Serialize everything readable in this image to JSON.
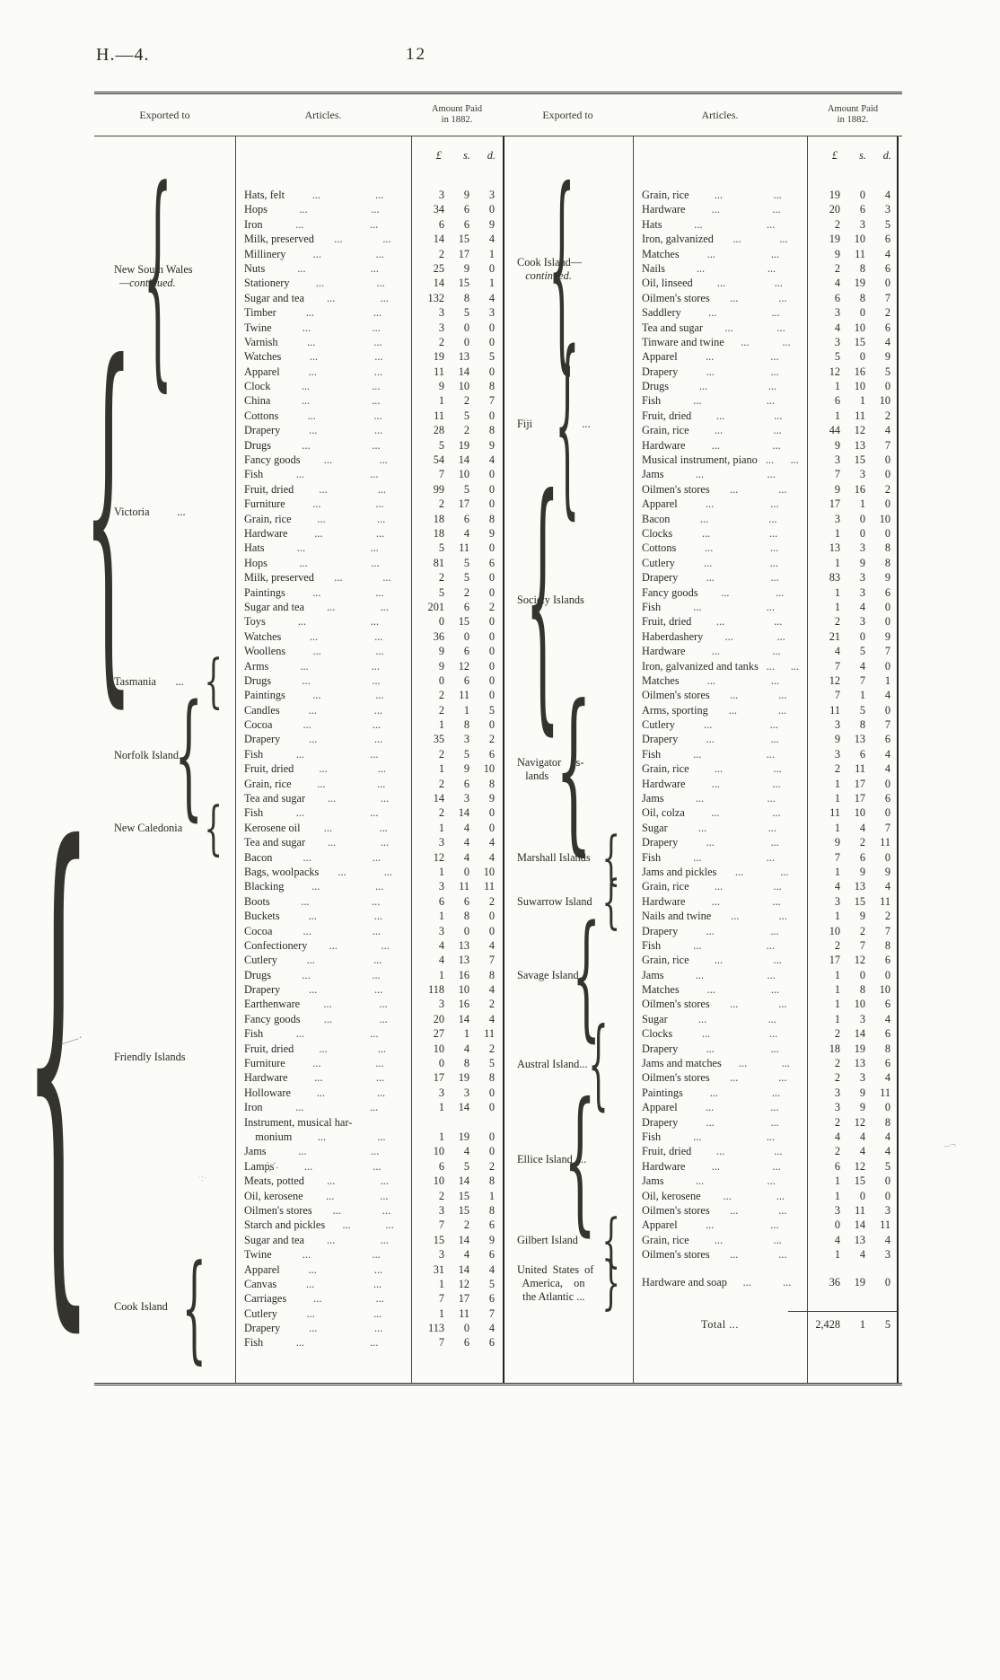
{
  "header": {
    "doc_ref": "H.—4.",
    "page_number": "12"
  },
  "table": {
    "headers": {
      "exported_to": "Exported to",
      "articles": "Articles.",
      "amount_line1": "Amount Paid",
      "amount_line2": "in 1882."
    },
    "currency": {
      "pound": "£",
      "shillings": "s.",
      "pence": "d."
    },
    "leader": "...",
    "total": {
      "label": "Total ...",
      "pounds": "2,428",
      "shillings": "1",
      "pence": "5"
    },
    "left_groups": [
      {
        "label": [
          "New South Wales",
          "  —continued."
        ],
        "italic": [
          1
        ],
        "brace": "{",
        "rows": [
          [
            "Hats, felt",
            "3",
            "9",
            "3"
          ],
          [
            "Hops",
            "34",
            "6",
            "0"
          ],
          [
            "Iron",
            "6",
            "6",
            "9"
          ],
          [
            "Milk, preserved",
            "14",
            "15",
            "4"
          ],
          [
            "Millinery",
            "2",
            "17",
            "1"
          ],
          [
            "Nuts",
            "25",
            "9",
            "0"
          ],
          [
            "Stationery",
            "14",
            "15",
            "1"
          ],
          [
            "Sugar and tea",
            "132",
            "8",
            "4"
          ],
          [
            "Timber",
            "3",
            "5",
            "3"
          ],
          [
            "Twine",
            "3",
            "0",
            "0"
          ],
          [
            "Varnish",
            "2",
            "0",
            "0"
          ],
          [
            "Watches",
            "19",
            "13",
            "5"
          ]
        ]
      },
      {
        "label": [
          "Victoria          ..."
        ],
        "brace": "{",
        "rows": [
          [
            "Apparel",
            "11",
            "14",
            "0"
          ],
          [
            "Clock",
            "9",
            "10",
            "8"
          ],
          [
            "China",
            "1",
            "2",
            "7"
          ],
          [
            "Cottons",
            "11",
            "5",
            "0"
          ],
          [
            "Drapery",
            "28",
            "2",
            "8"
          ],
          [
            "Drugs",
            "5",
            "19",
            "9"
          ],
          [
            "Fancy goods",
            "54",
            "14",
            "4"
          ],
          [
            "Fish",
            "7",
            "10",
            "0"
          ],
          [
            "Fruit, dried",
            "99",
            "5",
            "0"
          ],
          [
            "Furniture",
            "2",
            "17",
            "0"
          ],
          [
            "Grain, rice",
            "18",
            "6",
            "8"
          ],
          [
            "Hardware",
            "18",
            "4",
            "9"
          ],
          [
            "Hats",
            "5",
            "11",
            "0"
          ],
          [
            "Hops",
            "81",
            "5",
            "6"
          ],
          [
            "Milk, preserved",
            "2",
            "5",
            "0"
          ],
          [
            "Paintings",
            "5",
            "2",
            "0"
          ],
          [
            "Sugar and tea",
            "201",
            "6",
            "2"
          ],
          [
            "Toys",
            "0",
            "15",
            "0"
          ],
          [
            "Watches",
            "36",
            "0",
            "0"
          ],
          [
            "Woollens",
            "9",
            "6",
            "0"
          ]
        ]
      },
      {
        "label": [
          "Tasmania       ..."
        ],
        "brace": "{",
        "rows": [
          [
            "Arms",
            "9",
            "12",
            "0"
          ],
          [
            "Drugs",
            "0",
            "6",
            "0"
          ],
          [
            "Paintings",
            "2",
            "11",
            "0"
          ]
        ]
      },
      {
        "label": [
          "Norfolk Island..."
        ],
        "brace": "{",
        "rows": [
          [
            "Candles",
            "2",
            "1",
            "5"
          ],
          [
            "Cocoa",
            "1",
            "8",
            "0"
          ],
          [
            "Drapery",
            "35",
            "3",
            "2"
          ],
          [
            "Fish",
            "2",
            "5",
            "6"
          ],
          [
            "Fruit, dried",
            "1",
            "9",
            "10"
          ],
          [
            "Grain, rice",
            "2",
            "6",
            "8"
          ],
          [
            "Tea and sugar",
            "14",
            "3",
            "9"
          ]
        ]
      },
      {
        "label": [
          "New Caledonia"
        ],
        "brace": "{",
        "rows": [
          [
            "Fish",
            "2",
            "14",
            "0"
          ],
          [
            "Kerosene oil",
            "1",
            "4",
            "0"
          ],
          [
            "Tea and sugar",
            "3",
            "4",
            "4"
          ]
        ]
      },
      {
        "label": [
          "Friendly Islands"
        ],
        "brace": "{",
        "rows": [
          [
            "Bacon",
            "12",
            "4",
            "4"
          ],
          [
            "Bags, woolpacks",
            "1",
            "0",
            "10"
          ],
          [
            "Blacking",
            "3",
            "11",
            "11"
          ],
          [
            "Boots",
            "6",
            "6",
            "2"
          ],
          [
            "Buckets",
            "1",
            "8",
            "0"
          ],
          [
            "Cocoa",
            "3",
            "0",
            "0"
          ],
          [
            "Confectionery",
            "4",
            "13",
            "4"
          ],
          [
            "Cutlery",
            "4",
            "13",
            "7"
          ],
          [
            "Drugs",
            "1",
            "16",
            "8"
          ],
          [
            "Drapery",
            "118",
            "10",
            "4"
          ],
          [
            "Earthenware",
            "3",
            "16",
            "2"
          ],
          [
            "Fancy goods",
            "20",
            "14",
            "4"
          ],
          [
            "Fish",
            "27",
            "1",
            "11"
          ],
          [
            "Fruit, dried",
            "10",
            "4",
            "2"
          ],
          [
            "Furniture",
            "0",
            "8",
            "5"
          ],
          [
            "Hardware",
            "17",
            "19",
            "8"
          ],
          [
            "Holloware",
            "3",
            "3",
            "0"
          ],
          [
            "Iron",
            "1",
            "14",
            "0"
          ],
          [
            "Instrument, musical har-",
            "",
            "",
            ""
          ],
          [
            "    monium",
            "1",
            "19",
            "0"
          ],
          [
            "Jams",
            "10",
            "4",
            "0"
          ],
          [
            "Lamps",
            "6",
            "5",
            "2"
          ],
          [
            "Meats, potted",
            "10",
            "14",
            "8"
          ],
          [
            "Oil, kerosene",
            "2",
            "15",
            "1"
          ],
          [
            "Oilmen's stores",
            "3",
            "15",
            "8"
          ],
          [
            "Starch and pickles",
            "7",
            "2",
            "6"
          ],
          [
            "Sugar and tea",
            "15",
            "14",
            "9"
          ],
          [
            "Twine",
            "3",
            "4",
            "6"
          ]
        ]
      },
      {
        "label": [
          "Cook Island"
        ],
        "brace": "{",
        "rows": [
          [
            "Apparel",
            "31",
            "14",
            "4"
          ],
          [
            "Canvas",
            "1",
            "12",
            "5"
          ],
          [
            "Carriages",
            "7",
            "17",
            "6"
          ],
          [
            "Cutlery",
            "1",
            "11",
            "7"
          ],
          [
            "Drapery",
            "113",
            "0",
            "4"
          ],
          [
            "Fish",
            "7",
            "6",
            "6"
          ]
        ]
      }
    ],
    "right_groups": [
      {
        "label": [
          "Cook Island—",
          "   continued."
        ],
        "italic": [
          1
        ],
        "brace": "{",
        "rows": [
          [
            "Grain, rice",
            "19",
            "0",
            "4"
          ],
          [
            "Hardware",
            "20",
            "6",
            "3"
          ],
          [
            "Hats",
            "2",
            "3",
            "5"
          ],
          [
            "Iron, galvanized",
            "19",
            "10",
            "6"
          ],
          [
            "Matches",
            "9",
            "11",
            "4"
          ],
          [
            "Nails",
            "2",
            "8",
            "6"
          ],
          [
            "Oil, linseed",
            "4",
            "19",
            "0"
          ],
          [
            "Oilmen's stores",
            "6",
            "8",
            "7"
          ],
          [
            "Saddlery",
            "3",
            "0",
            "2"
          ],
          [
            "Tea and sugar",
            "4",
            "10",
            "6"
          ],
          [
            "Tinware and twine",
            "3",
            "15",
            "4"
          ]
        ]
      },
      {
        "label": [
          "Fiji                  ..."
        ],
        "brace": "{",
        "rows": [
          [
            "Apparel",
            "5",
            "0",
            "9"
          ],
          [
            "Drapery",
            "12",
            "16",
            "5"
          ],
          [
            "Drugs",
            "1",
            "10",
            "0"
          ],
          [
            "Fish",
            "6",
            "1",
            "10"
          ],
          [
            "Fruit, dried",
            "1",
            "11",
            "2"
          ],
          [
            "Grain, rice",
            "44",
            "12",
            "4"
          ],
          [
            "Hardware",
            "9",
            "13",
            "7"
          ],
          [
            "Musical instrument, piano",
            "3",
            "15",
            "0"
          ],
          [
            "Jams",
            "7",
            "3",
            "0"
          ],
          [
            "Oilmen's stores",
            "9",
            "16",
            "2"
          ]
        ]
      },
      {
        "label": [
          "Society Islands"
        ],
        "brace": "{",
        "rows": [
          [
            "Apparel",
            "17",
            "1",
            "0"
          ],
          [
            "Bacon",
            "3",
            "0",
            "10"
          ],
          [
            "Clocks",
            "1",
            "0",
            "0"
          ],
          [
            "Cottons",
            "13",
            "3",
            "8"
          ],
          [
            "Cutlery",
            "1",
            "9",
            "8"
          ],
          [
            "Drapery",
            "83",
            "3",
            "9"
          ],
          [
            "Fancy goods",
            "1",
            "3",
            "6"
          ],
          [
            "Fish",
            "1",
            "4",
            "0"
          ],
          [
            "Fruit, dried",
            "2",
            "3",
            "0"
          ],
          [
            "Haberdashery",
            "21",
            "0",
            "9"
          ],
          [
            "Hardware",
            "4",
            "5",
            "7"
          ],
          [
            "Iron, galvanized and tanks",
            "7",
            "4",
            "0"
          ],
          [
            "Matches",
            "12",
            "7",
            "1"
          ],
          [
            "Oilmen's stores",
            "7",
            "1",
            "4"
          ]
        ]
      },
      {
        "label": [
          "Navigator    Is-",
          "   lands"
        ],
        "brace": "{",
        "rows": [
          [
            "Arms, sporting",
            "11",
            "5",
            "0"
          ],
          [
            "Cutlery",
            "3",
            "8",
            "7"
          ],
          [
            "Drapery",
            "9",
            "13",
            "6"
          ],
          [
            "Fish",
            "3",
            "6",
            "4"
          ],
          [
            "Grain, rice",
            "2",
            "11",
            "4"
          ],
          [
            "Hardware",
            "1",
            "17",
            "0"
          ],
          [
            "Jams",
            "1",
            "17",
            "6"
          ],
          [
            "Oil, colza",
            "11",
            "10",
            "0"
          ],
          [
            "Sugar",
            "1",
            "4",
            "7"
          ]
        ]
      },
      {
        "label": [
          "Marshall Islands"
        ],
        "brace": "{",
        "rows": [
          [
            "Drapery",
            "9",
            "2",
            "11"
          ],
          [
            "Fish",
            "7",
            "6",
            "0"
          ],
          [
            "Jams and pickles",
            "1",
            "9",
            "9"
          ]
        ]
      },
      {
        "label": [
          "Suwarrow Island"
        ],
        "brace": "{",
        "rows": [
          [
            "Grain, rice",
            "4",
            "13",
            "4"
          ],
          [
            "Hardware",
            "3",
            "15",
            "11"
          ],
          [
            "Nails and twine",
            "1",
            "9",
            "2"
          ]
        ]
      },
      {
        "label": [
          "Savage Island..."
        ],
        "brace": "{",
        "rows": [
          [
            "Drapery",
            "10",
            "2",
            "7"
          ],
          [
            "Fish",
            "2",
            "7",
            "8"
          ],
          [
            "Grain, rice",
            "17",
            "12",
            "6"
          ],
          [
            "Jams",
            "1",
            "0",
            "0"
          ],
          [
            "Matches",
            "1",
            "8",
            "10"
          ],
          [
            "Oilmen's stores",
            "1",
            "10",
            "6"
          ],
          [
            "Sugar",
            "1",
            "3",
            "4"
          ]
        ]
      },
      {
        "label": [
          "Austral Island..."
        ],
        "brace": "{",
        "rows": [
          [
            "Clocks",
            "2",
            "14",
            "6"
          ],
          [
            "Drapery",
            "18",
            "19",
            "8"
          ],
          [
            "Jams and matches",
            "2",
            "13",
            "6"
          ],
          [
            "Oilmen's stores",
            "2",
            "3",
            "4"
          ],
          [
            "Paintings",
            "3",
            "9",
            "11"
          ]
        ]
      },
      {
        "label": [
          "Ellice Island  ..."
        ],
        "brace": "{",
        "rows": [
          [
            "Apparel",
            "3",
            "9",
            "0"
          ],
          [
            "Drapery",
            "2",
            "12",
            "8"
          ],
          [
            "Fish",
            "4",
            "4",
            "4"
          ],
          [
            "Fruit, dried",
            "2",
            "4",
            "4"
          ],
          [
            "Hardware",
            "6",
            "12",
            "5"
          ],
          [
            "Jams",
            "1",
            "15",
            "0"
          ],
          [
            "Oil, kerosene",
            "1",
            "0",
            "0"
          ],
          [
            "Oilmen's stores",
            "3",
            "11",
            "3"
          ]
        ]
      },
      {
        "label": [
          "Gilbert Island"
        ],
        "brace": "{",
        "rows": [
          [
            "Apparel",
            "0",
            "14",
            "11"
          ],
          [
            "Grain, rice",
            "4",
            "13",
            "4"
          ],
          [
            "Oilmen's stores",
            "1",
            "4",
            "3"
          ]
        ]
      },
      {
        "label": [
          "United  States  of",
          "  America,    on",
          "  the Atlantic ..."
        ],
        "brace": "}",
        "rows": [
          [
            "Hardware and soap",
            "36",
            "19",
            "0"
          ]
        ]
      }
    ]
  }
}
